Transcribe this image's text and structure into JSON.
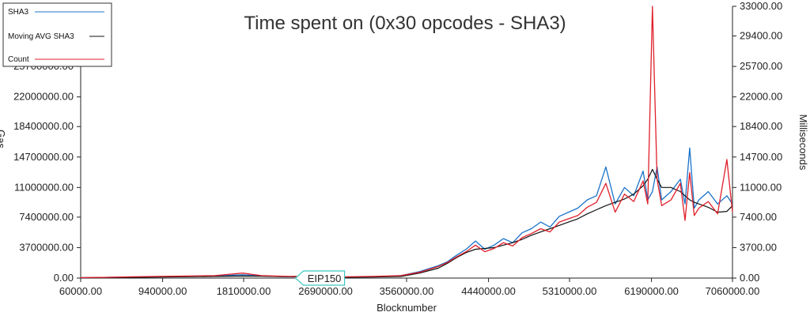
{
  "chart_data": {
    "type": "line",
    "title": "Time spent on (0x30 opcodes - SHA3)",
    "xlabel": "Blocknumber",
    "ylabel_right": "Milliseconds",
    "ylabel_left_visible": "Gas",
    "xlim": [
      60000,
      7060000
    ],
    "ylim_left": [
      0,
      33000000
    ],
    "ylim_right": [
      0,
      33000
    ],
    "x_ticks": [
      "60000.00",
      "940000.00",
      "1810000.00",
      "2690000.00",
      "3560000.00",
      "4440000.00",
      "5310000.00",
      "6190000.00",
      "7060000.00"
    ],
    "x_tick_values": [
      60000,
      940000,
      1810000,
      2690000,
      3560000,
      4440000,
      5310000,
      6190000,
      7060000
    ],
    "y_left_ticks": [
      "0.00",
      "3700000.00",
      "7400000.00",
      "11000000.00",
      "14700000.00",
      "18400000.00",
      "22000000.00",
      "25700000.00"
    ],
    "y_left_tick_values": [
      0,
      3700000,
      7400000,
      11000000,
      14700000,
      18400000,
      22000000,
      25700000
    ],
    "y_right_ticks": [
      "0.00",
      "3700.00",
      "7400.00",
      "11000.00",
      "14700.00",
      "18400.00",
      "22000.00",
      "25700.00",
      "29400.00",
      "33000.00"
    ],
    "y_right_tick_values": [
      0,
      3700,
      7400,
      11000,
      14700,
      18400,
      22000,
      25700,
      29400,
      33000
    ],
    "legend": {
      "placement": "top-left",
      "entries": [
        "SHA3",
        "Moving AVG SHA3",
        "Count"
      ]
    },
    "annotation": {
      "label": "EIP150",
      "x": 2690000
    },
    "grid": false,
    "colors": {
      "sha3": "#1a73c9",
      "moving_avg": "#111111",
      "count": "#e0202a",
      "annotation_border": "#3cc8c0"
    },
    "x": [
      60000,
      300000,
      600000,
      900000,
      1200000,
      1500000,
      1800000,
      2000000,
      2300000,
      2600000,
      2900000,
      3200000,
      3500000,
      3700000,
      3900000,
      4000000,
      4100000,
      4200000,
      4300000,
      4400000,
      4500000,
      4600000,
      4700000,
      4800000,
      4900000,
      5000000,
      5100000,
      5200000,
      5300000,
      5400000,
      5500000,
      5600000,
      5700000,
      5800000,
      5900000,
      6000000,
      6100000,
      6150000,
      6200000,
      6250000,
      6300000,
      6400000,
      6500000,
      6550000,
      6600000,
      6650000,
      6700000,
      6800000,
      6900000,
      7000000,
      7060000
    ],
    "series": [
      {
        "name": "SHA3",
        "axis": "left",
        "values": [
          50000,
          80000,
          120000,
          150000,
          200000,
          250000,
          400000,
          250000,
          150000,
          200000,
          100000,
          150000,
          300000,
          800000,
          1500000,
          2000000,
          2800000,
          3500000,
          4500000,
          3500000,
          4000000,
          4800000,
          4300000,
          5500000,
          6000000,
          6800000,
          6200000,
          7500000,
          8000000,
          8500000,
          9500000,
          10000000,
          13500000,
          9000000,
          11000000,
          10000000,
          13000000,
          9500000,
          10500000,
          13500000,
          9500000,
          10500000,
          12000000,
          9000000,
          15800000,
          8500000,
          9500000,
          10500000,
          9000000,
          10000000,
          9000000
        ]
      },
      {
        "name": "Moving AVG SHA3",
        "axis": "left",
        "values": [
          40000,
          60000,
          90000,
          120000,
          160000,
          200000,
          250000,
          220000,
          160000,
          140000,
          110000,
          120000,
          200000,
          600000,
          1200000,
          1800000,
          2500000,
          3100000,
          3500000,
          3600000,
          3700000,
          4000000,
          4300000,
          4700000,
          5200000,
          5600000,
          6000000,
          6400000,
          6800000,
          7200000,
          7800000,
          8300000,
          8800000,
          9200000,
          9600000,
          10200000,
          11200000,
          12000000,
          13200000,
          12000000,
          11000000,
          11000000,
          10500000,
          10000000,
          9500000,
          9200000,
          9000000,
          8600000,
          8000000,
          8100000,
          8800000
        ]
      },
      {
        "name": "Count",
        "axis": "right",
        "values": [
          60,
          90,
          150,
          200,
          250,
          300,
          600,
          300,
          200,
          250,
          150,
          200,
          300,
          700,
          1400,
          1900,
          2600,
          3200,
          4000,
          3200,
          3600,
          4300,
          3900,
          4900,
          5400,
          6000,
          5600,
          6800,
          7200,
          7600,
          8600,
          9200,
          11500,
          8000,
          10200,
          9300,
          11800,
          9000,
          33000,
          12000,
          8800,
          9500,
          11500,
          7000,
          12800,
          7600,
          8500,
          9300,
          7800,
          14400,
          8000
        ]
      }
    ]
  }
}
